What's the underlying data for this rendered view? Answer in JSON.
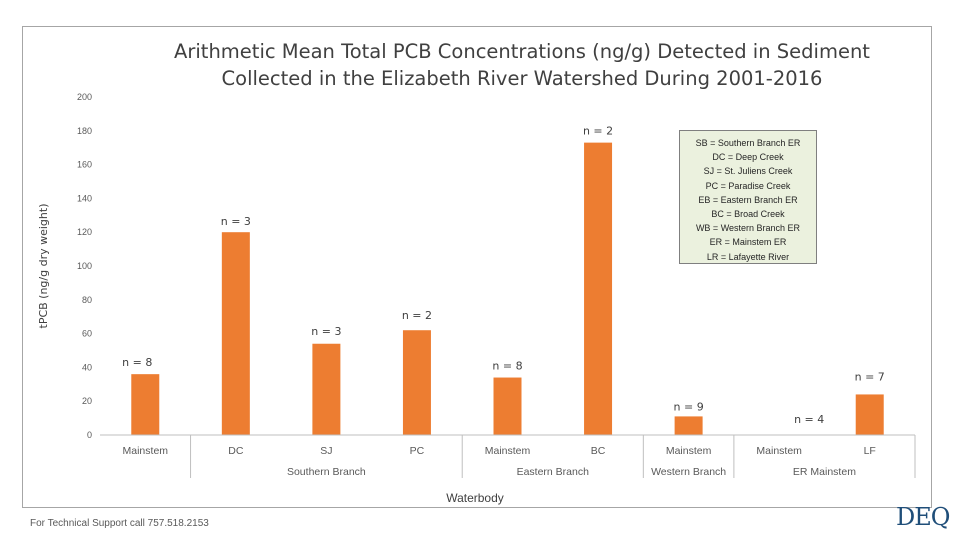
{
  "chart_data": {
    "type": "bar",
    "title": "Arithmetic Mean Total PCB Concentrations (ng/g) Detected in Sediment Collected in the Elizabeth River Watershed During 2001-2016",
    "title_lines": [
      "Arithmetic Mean Total PCB Concentrations (ng/g) Detected in Sediment",
      "Collected in the Elizabeth River Watershed During 2001-2016"
    ],
    "ylabel": "tPCB (ng/g dry weight)",
    "xlabel": "Waterbody",
    "ylim": [
      0,
      200
    ],
    "yticks": [
      0,
      20,
      40,
      60,
      80,
      100,
      120,
      140,
      160,
      180,
      200
    ],
    "grid": false,
    "bar_color": "#ed7d31",
    "categories": [
      "Mainstem",
      "DC",
      "SJ",
      "PC",
      "Mainstem",
      "BC",
      "Mainstem",
      "Mainstem",
      "LF"
    ],
    "values": [
      36,
      120,
      54,
      62,
      34,
      173,
      11,
      0,
      24
    ],
    "data_labels": [
      "n = 8",
      "n = 3",
      "n = 3",
      "n = 2",
      "n = 8",
      "n = 2",
      "n = 9",
      "n = 4",
      "n = 7"
    ],
    "groups": [
      {
        "label": "Southern Branch",
        "categories": [
          1,
          2,
          3
        ]
      },
      {
        "label": "Eastern Branch",
        "categories": [
          4,
          5
        ]
      },
      {
        "label": "Western Branch",
        "categories": [
          6
        ]
      },
      {
        "label": "ER Mainstem",
        "categories": [
          7,
          8
        ]
      }
    ],
    "legend_placement": "top-right",
    "legend_lines": [
      "SB = Southern Branch ER",
      "DC = Deep Creek",
      "SJ = St. Juliens Creek",
      "PC = Paradise Creek",
      "EB = Eastern Branch ER",
      "BC = Broad Creek",
      "WB = Western Branch ER",
      "ER = Mainstem ER",
      "LR = Lafayette River"
    ]
  },
  "footer": {
    "support_text": "For Technical Support call 757.518.2153",
    "logo_text": "DEQ"
  }
}
